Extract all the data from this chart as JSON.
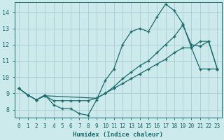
{
  "xlabel": "Humidex (Indice chaleur)",
  "background_color": "#cce9ec",
  "grid_color": "#aacdd4",
  "line_color": "#1a6b6b",
  "xlim": [
    -0.5,
    23.5
  ],
  "ylim": [
    7.5,
    14.6
  ],
  "xticks": [
    0,
    1,
    2,
    3,
    4,
    5,
    6,
    7,
    8,
    9,
    10,
    11,
    12,
    13,
    14,
    15,
    16,
    17,
    18,
    19,
    20,
    21,
    22,
    23
  ],
  "yticks": [
    8,
    9,
    10,
    11,
    12,
    13,
    14
  ],
  "line1_x": [
    0,
    1,
    2,
    3,
    4,
    5,
    6,
    7,
    8,
    9,
    10,
    11,
    12,
    13,
    14,
    15,
    16,
    17,
    18,
    19,
    20,
    21,
    22,
    23
  ],
  "line1_y": [
    9.3,
    8.9,
    8.6,
    8.9,
    8.3,
    8.05,
    8.05,
    7.75,
    7.65,
    8.6,
    9.8,
    10.5,
    12.0,
    12.8,
    13.0,
    12.8,
    13.7,
    14.5,
    14.1,
    13.3,
    11.8,
    12.2,
    12.2,
    10.5
  ],
  "line2_x": [
    0,
    1,
    2,
    3,
    9,
    10,
    11,
    12,
    13,
    14,
    15,
    16,
    17,
    18,
    19,
    20,
    21,
    22,
    23
  ],
  "line2_y": [
    9.3,
    8.9,
    8.6,
    8.85,
    8.7,
    9.0,
    9.4,
    9.9,
    10.3,
    10.7,
    11.0,
    11.5,
    12.0,
    12.5,
    13.2,
    12.0,
    11.9,
    12.2,
    10.5
  ],
  "line3_x": [
    0,
    1,
    2,
    3,
    4,
    5,
    6,
    7,
    8,
    9,
    10,
    11,
    12,
    13,
    14,
    15,
    16,
    17,
    18,
    19,
    20,
    21,
    22,
    23
  ],
  "line3_y": [
    9.3,
    8.9,
    8.6,
    8.85,
    8.55,
    8.55,
    8.55,
    8.55,
    8.55,
    8.7,
    9.0,
    9.3,
    9.6,
    9.9,
    10.2,
    10.5,
    10.8,
    11.1,
    11.5,
    11.8,
    11.8,
    10.5,
    10.5,
    10.5
  ]
}
